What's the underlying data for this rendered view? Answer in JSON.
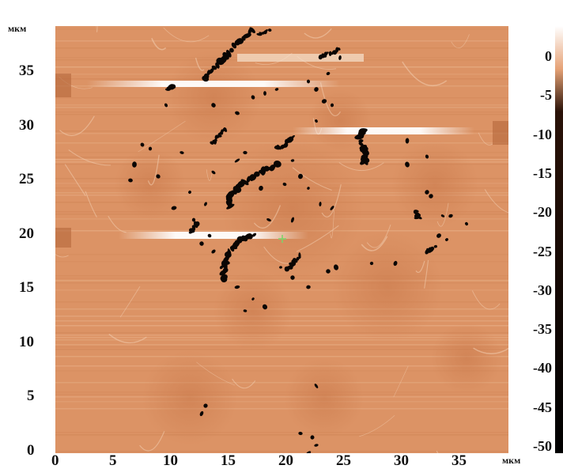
{
  "image": {
    "y_unit": "мкм",
    "x_unit": "мкм",
    "y_ticks": [
      "35",
      "30",
      "25",
      "20",
      "15",
      "10",
      "5",
      "0"
    ],
    "x_ticks": [
      "0",
      "5",
      "10",
      "15",
      "20",
      "25",
      "30",
      "35"
    ],
    "colorbar_ticks": [
      "0",
      "-5",
      "-10",
      "-15",
      "-20",
      "-25",
      "-30",
      "-35",
      "-40",
      "-45",
      "-50"
    ],
    "colors": {
      "base": "#d98c5a",
      "light": "#f5dcc8",
      "dark": "#b0633a",
      "spots": "#0a0604",
      "marker": "#7fd36a"
    },
    "marker_icon": "plus-marker-icon"
  }
}
